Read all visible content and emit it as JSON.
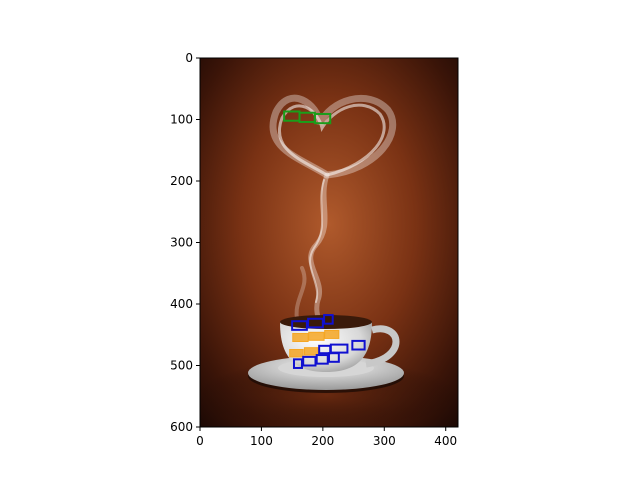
{
  "chart_data": {
    "type": "scatter",
    "title": "",
    "xlabel": "",
    "ylabel": "",
    "xlim": [
      0,
      420
    ],
    "ylim": [
      600,
      0
    ],
    "y_inverted": true,
    "grid": false,
    "x_ticks": [
      0,
      100,
      200,
      300,
      400
    ],
    "y_ticks": [
      0,
      100,
      200,
      300,
      400,
      500,
      600
    ],
    "background_image": "steaming coffee cup with heart-shaped steam on dark brown background",
    "colors": {
      "green": "#1a9e1a",
      "blue": "#1010d0",
      "orange": "#f5a623",
      "frame": "#000000"
    },
    "boxes": [
      {
        "group": "green",
        "x0": 137,
        "y0": 87,
        "x1": 162,
        "y1": 102
      },
      {
        "group": "green",
        "x0": 162,
        "y0": 89,
        "x1": 187,
        "y1": 104
      },
      {
        "group": "green",
        "x0": 187,
        "y0": 91,
        "x1": 212,
        "y1": 106
      },
      {
        "group": "blue",
        "x0": 150,
        "y0": 428,
        "x1": 174,
        "y1": 442
      },
      {
        "group": "blue",
        "x0": 176,
        "y0": 424,
        "x1": 200,
        "y1": 438
      },
      {
        "group": "blue",
        "x0": 202,
        "y0": 418,
        "x1": 216,
        "y1": 432
      },
      {
        "group": "orange",
        "x0": 151,
        "y0": 448,
        "x1": 176,
        "y1": 461
      },
      {
        "group": "orange",
        "x0": 177,
        "y0": 446,
        "x1": 202,
        "y1": 459
      },
      {
        "group": "orange",
        "x0": 203,
        "y0": 443,
        "x1": 226,
        "y1": 456
      },
      {
        "group": "orange",
        "x0": 146,
        "y0": 474,
        "x1": 168,
        "y1": 486
      },
      {
        "group": "orange",
        "x0": 170,
        "y0": 471,
        "x1": 192,
        "y1": 483
      },
      {
        "group": "blue",
        "x0": 194,
        "y0": 468,
        "x1": 212,
        "y1": 480
      },
      {
        "group": "blue",
        "x0": 213,
        "y0": 466,
        "x1": 240,
        "y1": 479
      },
      {
        "group": "blue",
        "x0": 248,
        "y0": 460,
        "x1": 268,
        "y1": 474
      },
      {
        "group": "blue",
        "x0": 153,
        "y0": 490,
        "x1": 166,
        "y1": 504
      },
      {
        "group": "blue",
        "x0": 168,
        "y0": 486,
        "x1": 188,
        "y1": 500
      },
      {
        "group": "blue",
        "x0": 190,
        "y0": 483,
        "x1": 208,
        "y1": 497
      },
      {
        "group": "blue",
        "x0": 210,
        "y0": 480,
        "x1": 226,
        "y1": 494
      }
    ]
  }
}
